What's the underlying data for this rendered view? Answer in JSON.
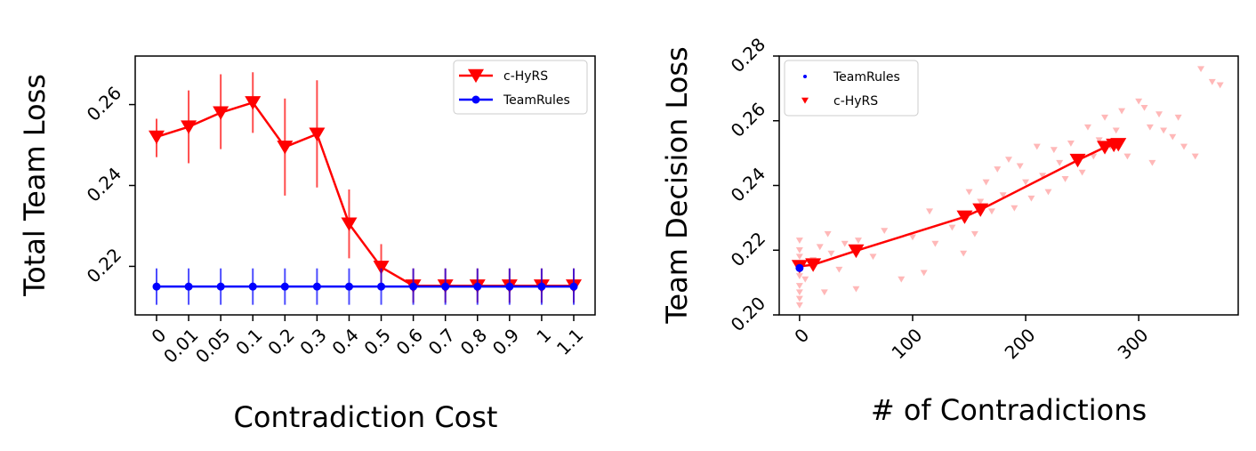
{
  "chart_data": [
    {
      "type": "line",
      "xlabel": "Contradiction Cost",
      "ylabel": "Total Team Loss",
      "categories": [
        "0",
        "0.01",
        "0.05",
        "0.1",
        "0.2",
        "0.3",
        "0.4",
        "0.5",
        "0.6",
        "0.7",
        "0.8",
        "0.9",
        "1",
        "1.1"
      ],
      "ylim": [
        0.208,
        0.272
      ],
      "yticks": [
        0.22,
        0.24,
        0.26
      ],
      "ytick_labels": [
        "0.22",
        "0.24",
        "0.26"
      ],
      "legend_position": "top-right",
      "series": [
        {
          "name": "c-HyRS",
          "color": "#ff0000",
          "marker": "triangle-down",
          "values": [
            0.252,
            0.2545,
            0.258,
            0.2605,
            0.2495,
            0.2527,
            0.2305,
            0.2198,
            0.2152,
            0.2152,
            0.2152,
            0.2152,
            0.2152,
            0.2152
          ],
          "err_low": [
            0.247,
            0.2455,
            0.249,
            0.253,
            0.2375,
            0.2395,
            0.222,
            0.214,
            0.211,
            0.211,
            0.211,
            0.211,
            0.211,
            0.211
          ],
          "err_high": [
            0.2565,
            0.2635,
            0.2675,
            0.268,
            0.2615,
            0.266,
            0.239,
            0.2255,
            0.2195,
            0.2195,
            0.2195,
            0.2195,
            0.2195,
            0.2195
          ]
        },
        {
          "name": "TeamRules",
          "color": "#0000ff",
          "marker": "circle",
          "values": [
            0.215,
            0.215,
            0.215,
            0.215,
            0.215,
            0.215,
            0.215,
            0.215,
            0.215,
            0.215,
            0.215,
            0.215,
            0.215,
            0.215
          ],
          "err_low": [
            0.2105,
            0.2105,
            0.2105,
            0.2105,
            0.2105,
            0.2105,
            0.2105,
            0.2105,
            0.2105,
            0.2105,
            0.2105,
            0.2105,
            0.2105,
            0.2105
          ],
          "err_high": [
            0.2195,
            0.2195,
            0.2195,
            0.2195,
            0.2195,
            0.2195,
            0.2195,
            0.2195,
            0.2195,
            0.2195,
            0.2195,
            0.2195,
            0.2195,
            0.2195
          ]
        }
      ]
    },
    {
      "type": "scatter",
      "xlabel": "# of Contradictions",
      "ylabel": "Team Decision Loss",
      "xlim": [
        -18,
        388
      ],
      "ylim": [
        0.2,
        0.28
      ],
      "xticks": [
        0,
        100,
        200,
        300
      ],
      "xtick_labels": [
        "0",
        "100",
        "200",
        "300"
      ],
      "yticks": [
        0.2,
        0.22,
        0.24,
        0.26,
        0.28
      ],
      "ytick_labels": [
        "0.20",
        "0.22",
        "0.24",
        "0.26",
        "0.28"
      ],
      "legend_position": "top-left",
      "legend": [
        {
          "name": "TeamRules",
          "color": "#0000ff",
          "marker": "circle"
        },
        {
          "name": "c-HyRS",
          "color": "#ff0000",
          "marker": "triangle-down"
        }
      ],
      "teamrules_points": [
        [
          0,
          0.2145
        ]
      ],
      "chyrs_line": {
        "x": [
          0,
          12,
          50,
          146,
          160,
          246,
          270,
          278,
          282
        ],
        "y": [
          0.215,
          0.2155,
          0.2198,
          0.2303,
          0.2325,
          0.2478,
          0.2518,
          0.2525,
          0.2527
        ]
      },
      "chyrs_scatter": {
        "x": [
          0,
          0,
          0,
          0,
          0,
          0,
          0,
          0,
          0,
          0,
          5,
          12,
          18,
          22,
          25,
          28,
          35,
          40,
          50,
          52,
          65,
          75,
          90,
          100,
          110,
          115,
          120,
          135,
          145,
          150,
          155,
          160,
          165,
          170,
          175,
          180,
          185,
          190,
          195,
          200,
          205,
          210,
          215,
          220,
          225,
          230,
          235,
          240,
          250,
          255,
          260,
          265,
          270,
          275,
          280,
          285,
          290,
          300,
          305,
          310,
          312,
          318,
          322,
          330,
          335,
          340,
          350,
          355,
          365,
          372
        ],
        "y": [
          0.203,
          0.205,
          0.207,
          0.209,
          0.212,
          0.214,
          0.216,
          0.218,
          0.22,
          0.223,
          0.211,
          0.217,
          0.221,
          0.207,
          0.225,
          0.219,
          0.214,
          0.222,
          0.208,
          0.223,
          0.218,
          0.226,
          0.211,
          0.224,
          0.213,
          0.232,
          0.222,
          0.227,
          0.219,
          0.238,
          0.225,
          0.235,
          0.241,
          0.232,
          0.245,
          0.237,
          0.248,
          0.233,
          0.246,
          0.241,
          0.236,
          0.252,
          0.243,
          0.238,
          0.251,
          0.247,
          0.242,
          0.253,
          0.244,
          0.258,
          0.249,
          0.254,
          0.261,
          0.252,
          0.257,
          0.263,
          0.249,
          0.266,
          0.264,
          0.258,
          0.247,
          0.262,
          0.257,
          0.255,
          0.261,
          0.252,
          0.249,
          0.276,
          0.272,
          0.271
        ]
      }
    }
  ]
}
